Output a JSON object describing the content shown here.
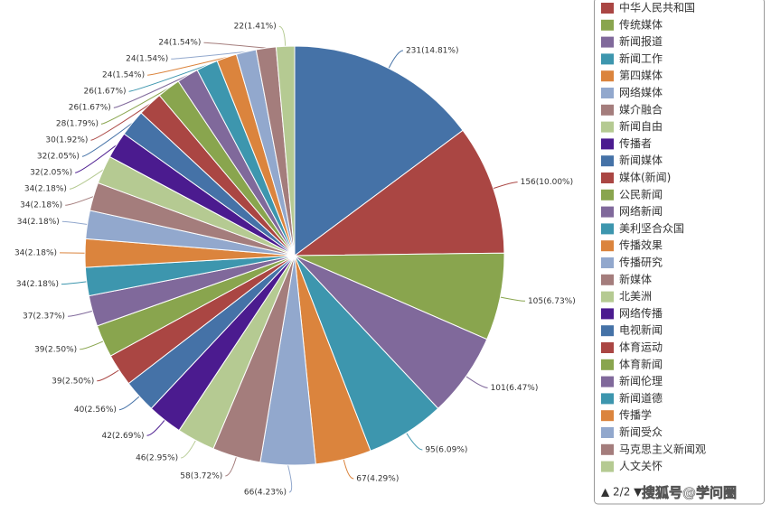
{
  "chart_data": {
    "type": "pie",
    "categories": [
      null,
      "中华人民共和国",
      "传统媒体",
      "新闻报道",
      "新闻工作",
      "第四媒体",
      "网络媒体",
      "媒介融合",
      "新闻自由",
      "传播者",
      "新闻媒体",
      "媒体(新闻)",
      "公民新闻",
      "网络新闻",
      "美利坚合众国",
      "传播效果",
      "传播研究",
      "新媒体",
      "北美洲",
      "网络传播",
      "电视新闻",
      "体育运动",
      "体育新闻",
      "新闻伦理",
      "新闻道德",
      "传播学",
      "新闻受众",
      "马克思主义新闻观",
      "人文关怀"
    ],
    "values": [
      231,
      156,
      105,
      101,
      95,
      67,
      66,
      58,
      46,
      42,
      40,
      39,
      39,
      37,
      34,
      34,
      34,
      34,
      34,
      32,
      32,
      30,
      28,
      26,
      26,
      24,
      24,
      24,
      22
    ],
    "value_labels": [
      "231(14.81%)",
      "156(10.00%)",
      "105(6.73%)",
      "101(6.47%)",
      "95(6.09%)",
      "67(4.29%)",
      "66(4.23%)",
      "58(3.72%)",
      "46(2.95%)",
      "42(2.69%)",
      "40(2.56%)",
      "39(2.50%)",
      "39(2.50%)",
      "37(2.37%)",
      "34(2.18%)",
      "34(2.18%)",
      "34(2.18%)",
      "34(2.18%)",
      "34(2.18%)",
      "32(2.05%)",
      "32(2.05%)",
      "30(1.92%)",
      "28(1.79%)",
      "26(1.67%)",
      "26(1.67%)",
      "24(1.54%)",
      "24(1.54%)",
      "24(1.54%)",
      "22(1.41%)"
    ],
    "colors": [
      "#4572a7",
      "#aa4643",
      "#89a54e",
      "#80699b",
      "#3d96ae",
      "#db843d",
      "#92a8cd",
      "#a47d7c",
      "#b5ca92",
      "#4b1b8f"
    ],
    "legend_pager": "▲ 2/2 ▼",
    "watermark": "搜狐号@学问圈"
  }
}
